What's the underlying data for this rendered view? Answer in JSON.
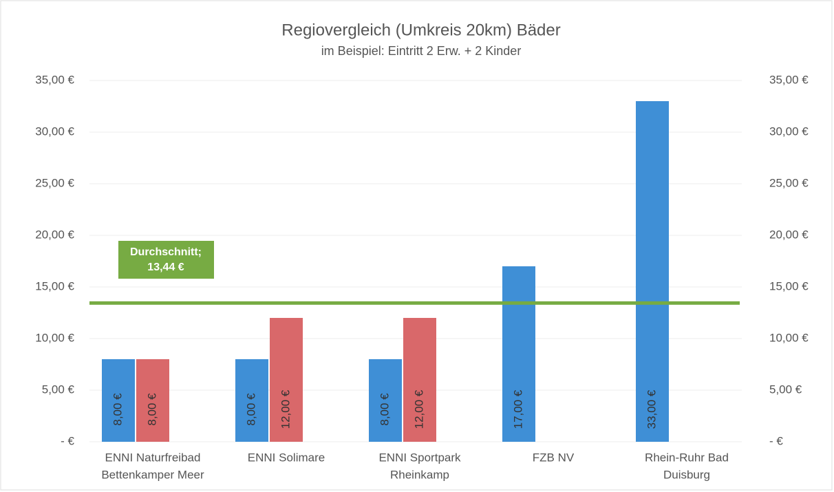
{
  "chart_data": {
    "type": "bar",
    "title": "Regiovergleich (Umkreis 20km) Bäder",
    "subtitle": "im Beispiel: Eintritt 2 Erw. + 2 Kinder",
    "categories": [
      [
        "ENNI Naturfreibad",
        "Bettenkamper Meer"
      ],
      [
        "ENNI Solimare"
      ],
      [
        "ENNI Sportpark",
        "Rheinkamp"
      ],
      [
        "FZB NV"
      ],
      [
        "Rhein-Ruhr Bad",
        "Duisburg"
      ]
    ],
    "series": [
      {
        "color": "#3f8fd6",
        "values": [
          8,
          8,
          8,
          17,
          33
        ],
        "value_labels": [
          "8,00 €",
          "8,00 €",
          "8,00 €",
          "17,00 €",
          "33,00 €"
        ]
      },
      {
        "color": "#d9686a",
        "values": [
          8,
          12,
          12,
          null,
          null
        ],
        "value_labels": [
          "8,00 €",
          "12,00 €",
          "12,00 €",
          null,
          null
        ]
      }
    ],
    "average": {
      "value": 13.44,
      "label": [
        "Durchschnitt;",
        "13,44 €"
      ],
      "color": "#77ab43"
    },
    "ylim": [
      0,
      35
    ],
    "yticks": [
      {
        "value": 0,
        "label": "-   €"
      },
      {
        "value": 5,
        "label": "5,00 €"
      },
      {
        "value": 10,
        "label": "10,00 €"
      },
      {
        "value": 15,
        "label": "15,00 €"
      },
      {
        "value": 20,
        "label": "20,00 €"
      },
      {
        "value": 25,
        "label": "25,00 €"
      },
      {
        "value": 30,
        "label": "30,00 €"
      },
      {
        "value": 35,
        "label": "35,00 €"
      }
    ],
    "y2lim": [
      0,
      35
    ],
    "y2ticks": [
      {
        "value": 0,
        "label": "-   €"
      },
      {
        "value": 5,
        "label": "5,00 €"
      },
      {
        "value": 10,
        "label": "10,00 €"
      },
      {
        "value": 15,
        "label": "15,00 €"
      },
      {
        "value": 20,
        "label": "20,00 €"
      },
      {
        "value": 25,
        "label": "25,00 €"
      },
      {
        "value": 30,
        "label": "30,00 €"
      },
      {
        "value": 35,
        "label": "35,00 €"
      }
    ],
    "grid": true
  }
}
